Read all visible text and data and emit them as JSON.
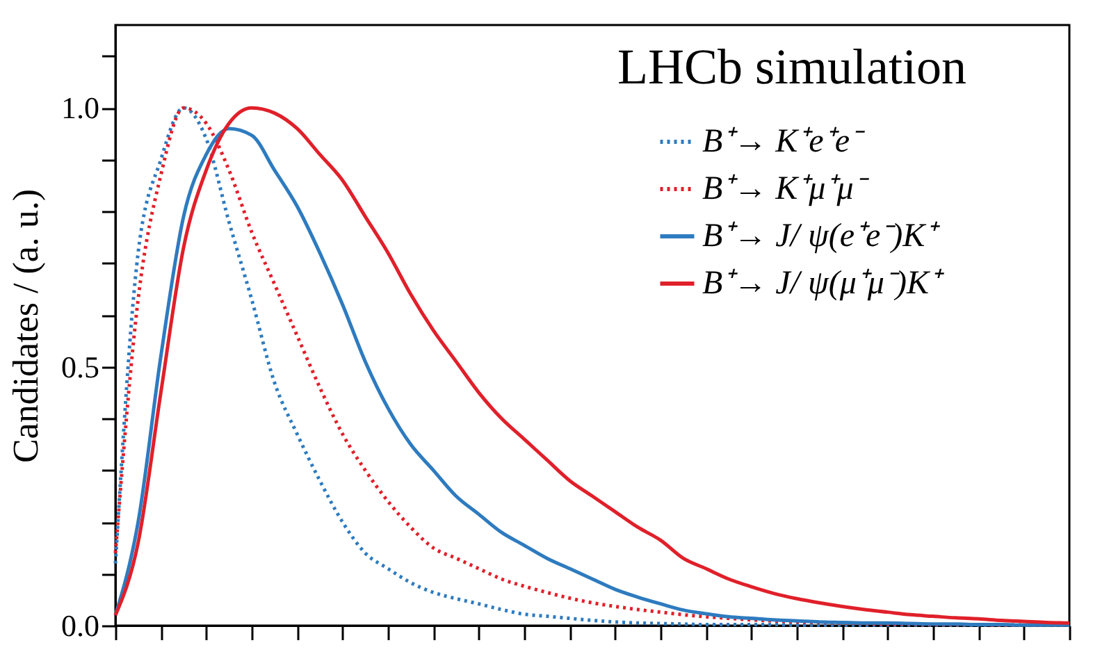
{
  "chart_data": {
    "type": "line",
    "ylabel": "Candidates / (a. u.)",
    "annotations": [
      "LHCb simulation"
    ],
    "legend": "top right",
    "categories": [
      null,
      null,
      null,
      null,
      null,
      null,
      null,
      null,
      null,
      null,
      null,
      null,
      null,
      null,
      null,
      null,
      null,
      null,
      null,
      null,
      null,
      null,
      null,
      null,
      null,
      null,
      null,
      null,
      null,
      null,
      null,
      null,
      null,
      null,
      null,
      null,
      null,
      null,
      null,
      null,
      null,
      null,
      null
    ],
    "ylim": [
      0,
      1.16
    ],
    "yticks": [
      {
        "value": 0,
        "label": "0.0"
      },
      {
        "value": 0.1,
        "label": null
      },
      {
        "value": 0.2,
        "label": null
      },
      {
        "value": 0.3,
        "label": null
      },
      {
        "value": 0.4,
        "label": null
      },
      0.5,
      {
        "value": 0.6,
        "label": null
      },
      {
        "value": 0.7,
        "label": null
      },
      {
        "value": 0.8,
        "label": null
      },
      {
        "value": 0.9,
        "label": null
      },
      {
        "value": 1,
        "label": "1.0"
      },
      {
        "value": 1.1,
        "label": null
      }
    ],
    "series": [
      {
        "name": "B⁺→ K⁺e⁺e⁻",
        "color": "#2e7bbf",
        "line_style": "dotted",
        "values": [
          0.12,
          0.72,
          0.9,
          1.0,
          0.94,
          0.78,
          0.63,
          0.47,
          0.37,
          0.28,
          0.2,
          0.14,
          0.11,
          0.083,
          0.064,
          0.052,
          0.042,
          0.031,
          0.022,
          0.018,
          0.014,
          0.01,
          0.007,
          0.005,
          0.004,
          0.003,
          0.002,
          0.002,
          0.002,
          0.002,
          0.001,
          0.001,
          0.001,
          0.001,
          0.001,
          0.001,
          0.001,
          0.001,
          0.001,
          0.001,
          0.001,
          0.001,
          0.001
        ]
      },
      {
        "name": "B⁺→ K⁺μ⁺μ⁻",
        "color": "#e0202a",
        "line_style": "dotted",
        "values": [
          0.14,
          0.63,
          0.87,
          1.0,
          0.97,
          0.88,
          0.76,
          0.66,
          0.56,
          0.46,
          0.37,
          0.3,
          0.24,
          0.19,
          0.15,
          0.13,
          0.11,
          0.09,
          0.076,
          0.064,
          0.053,
          0.044,
          0.037,
          0.031,
          0.026,
          0.021,
          0.017,
          0.014,
          0.011,
          0.009,
          0.007,
          0.006,
          0.005,
          0.004,
          0.003,
          0.003,
          0.002,
          0.002,
          0.002,
          0.001,
          0.001,
          0.001,
          0.001
        ]
      },
      {
        "name": "B⁺→ J/ ψ(e⁺e⁻)K⁺",
        "color": "#2e7bbf",
        "line_style": "solid",
        "values": [
          0.02,
          0.2,
          0.52,
          0.79,
          0.91,
          0.96,
          0.947,
          0.88,
          0.81,
          0.72,
          0.62,
          0.51,
          0.42,
          0.35,
          0.3,
          0.25,
          0.215,
          0.18,
          0.155,
          0.13,
          0.11,
          0.09,
          0.07,
          0.055,
          0.042,
          0.03,
          0.023,
          0.017,
          0.014,
          0.011,
          0.009,
          0.007,
          0.006,
          0.005,
          0.005,
          0.004,
          0.003,
          0.003,
          0.002,
          0.002,
          0.001,
          0.001,
          0.001
        ]
      },
      {
        "name": "B⁺→ J/ ψ(μ⁺μ⁻)K⁺",
        "color": "#e0202a",
        "line_style": "solid",
        "values": [
          0.02,
          0.16,
          0.45,
          0.73,
          0.88,
          0.97,
          1.0,
          0.99,
          0.96,
          0.91,
          0.86,
          0.79,
          0.72,
          0.64,
          0.57,
          0.51,
          0.45,
          0.4,
          0.36,
          0.32,
          0.28,
          0.25,
          0.22,
          0.19,
          0.165,
          0.13,
          0.11,
          0.09,
          0.075,
          0.062,
          0.052,
          0.044,
          0.037,
          0.031,
          0.026,
          0.021,
          0.018,
          0.015,
          0.013,
          0.01,
          0.008,
          0.006,
          0.005
        ]
      }
    ]
  }
}
